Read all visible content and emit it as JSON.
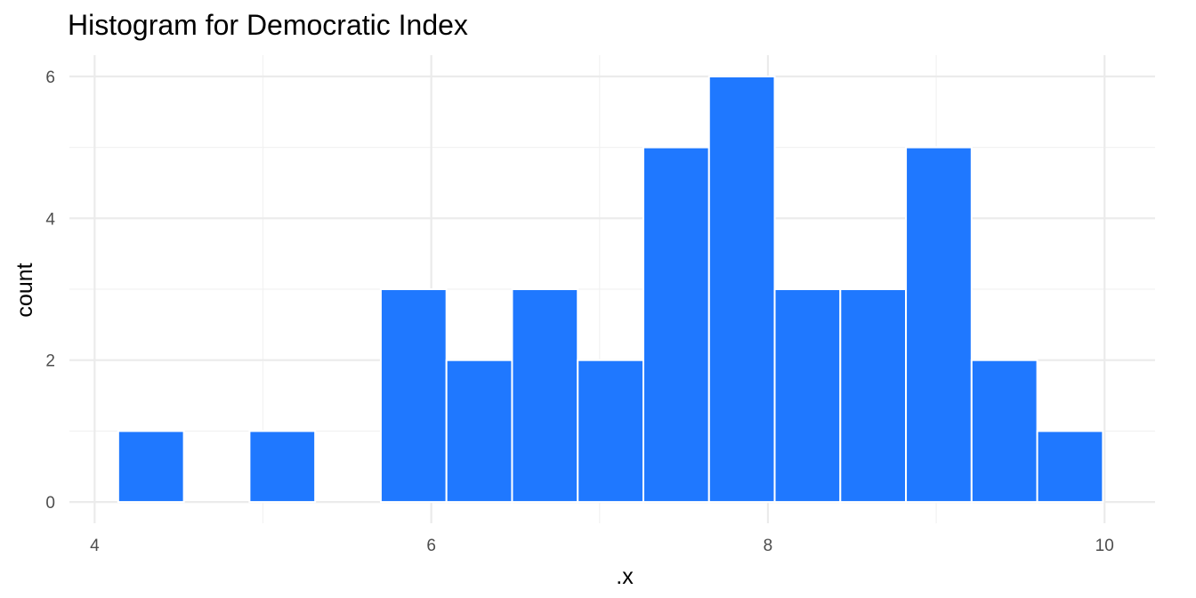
{
  "chart_data": {
    "type": "bar",
    "title": "Histogram for Democratic Index",
    "xlabel": ".x",
    "ylabel": "count",
    "bin_width": 0.39,
    "bins": [
      {
        "x_start": 4.14,
        "x_end": 4.53,
        "count": 1
      },
      {
        "x_start": 4.53,
        "x_end": 4.92,
        "count": 0
      },
      {
        "x_start": 4.92,
        "x_end": 5.31,
        "count": 1
      },
      {
        "x_start": 5.31,
        "x_end": 5.7,
        "count": 0
      },
      {
        "x_start": 5.7,
        "x_end": 6.09,
        "count": 3
      },
      {
        "x_start": 6.09,
        "x_end": 6.48,
        "count": 2
      },
      {
        "x_start": 6.48,
        "x_end": 6.87,
        "count": 3
      },
      {
        "x_start": 6.87,
        "x_end": 7.26,
        "count": 2
      },
      {
        "x_start": 7.26,
        "x_end": 7.65,
        "count": 5
      },
      {
        "x_start": 7.65,
        "x_end": 8.04,
        "count": 6
      },
      {
        "x_start": 8.04,
        "x_end": 8.43,
        "count": 3
      },
      {
        "x_start": 8.43,
        "x_end": 8.82,
        "count": 3
      },
      {
        "x_start": 8.82,
        "x_end": 9.21,
        "count": 5
      },
      {
        "x_start": 9.21,
        "x_end": 9.6,
        "count": 2
      },
      {
        "x_start": 9.6,
        "x_end": 9.99,
        "count": 1
      }
    ],
    "xlim": [
      3.85,
      10.3
    ],
    "ylim": [
      -0.3,
      6.3
    ],
    "x_ticks": [
      4,
      6,
      8,
      10
    ],
    "y_ticks": [
      0,
      2,
      4,
      6
    ],
    "x_minor_ticks": [
      5,
      7,
      9
    ],
    "y_minor_ticks": [
      1,
      3,
      5
    ],
    "bar_color": "#1f78ff",
    "bar_outline_color": "#ffffff",
    "grid": true,
    "legend": "none"
  }
}
